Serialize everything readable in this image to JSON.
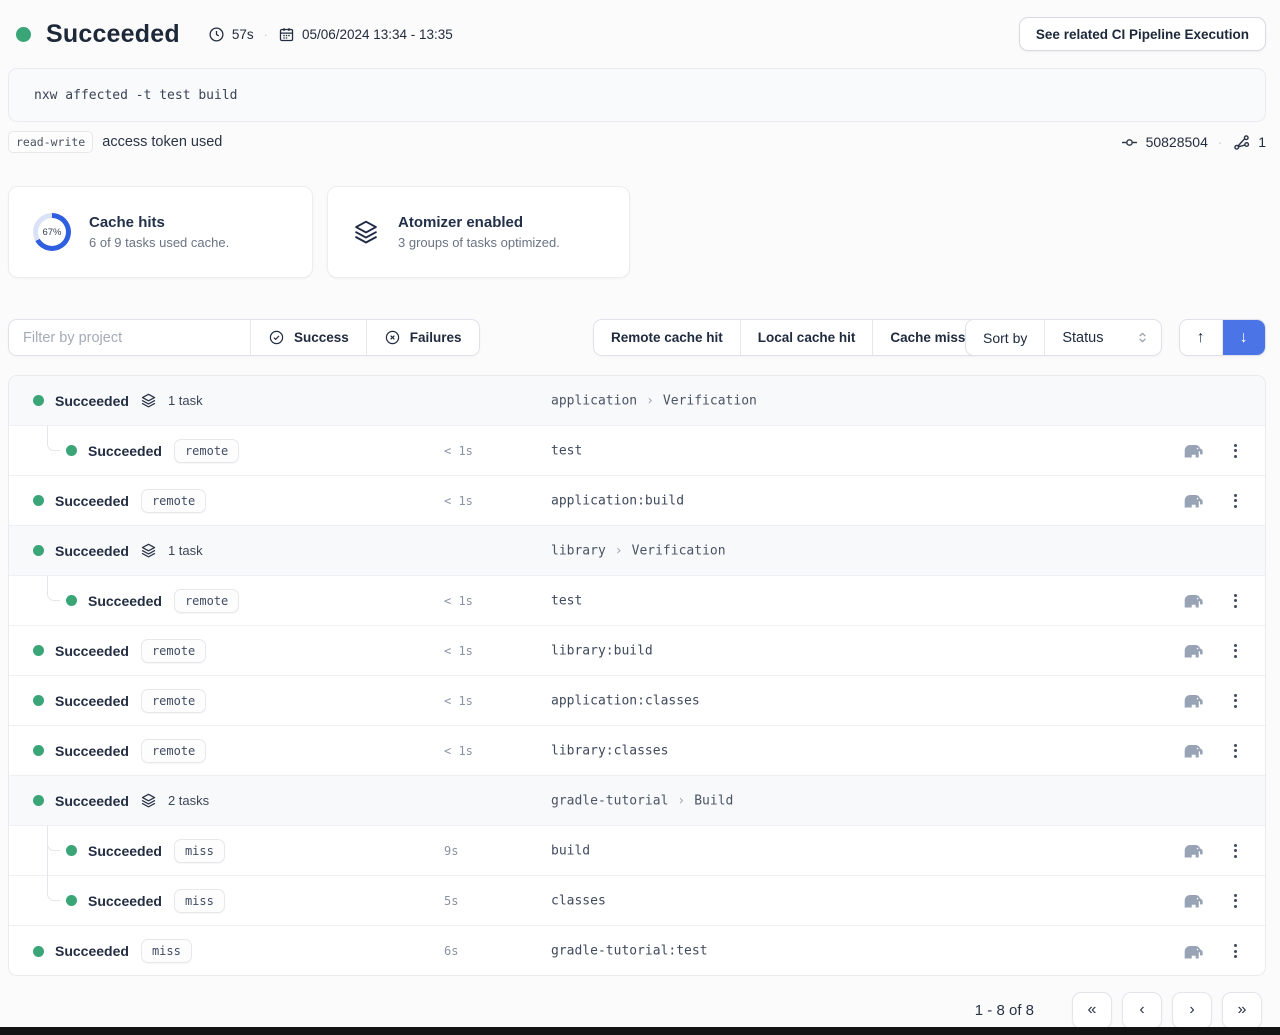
{
  "header": {
    "status_label": "Succeeded",
    "duration": "57s",
    "date_range": "05/06/2024 13:34 - 13:35",
    "cta_button": "See related CI Pipeline Execution"
  },
  "command": "nxw affected -t test build",
  "token": {
    "badge": "read-write",
    "text": "access token used",
    "commit_id": "50828504",
    "branch_count": "1"
  },
  "cards": {
    "cache_hits": {
      "percent": "67%",
      "title": "Cache hits",
      "subtitle": "6 of 9 tasks used cache."
    },
    "atomizer": {
      "title": "Atomizer enabled",
      "subtitle": "3 groups of tasks optimized."
    }
  },
  "filters": {
    "project_placeholder": "Filter by project",
    "success_label": "Success",
    "failures_label": "Failures",
    "cache_buttons": [
      "Remote cache hit",
      "Local cache hit",
      "Cache miss"
    ],
    "sort_label": "Sort by",
    "sort_value": "Status"
  },
  "tasks": {
    "rows": [
      {
        "type": "group",
        "status": "Succeeded",
        "count": "1 task",
        "project": "application",
        "target": "Verification"
      },
      {
        "type": "task",
        "indent": true,
        "status": "Succeeded",
        "badge": "remote",
        "duration": "< 1s",
        "name": "test"
      },
      {
        "type": "task",
        "indent": false,
        "status": "Succeeded",
        "badge": "remote",
        "duration": "< 1s",
        "name": "application:build"
      },
      {
        "type": "group",
        "status": "Succeeded",
        "count": "1 task",
        "project": "library",
        "target": "Verification"
      },
      {
        "type": "task",
        "indent": true,
        "status": "Succeeded",
        "badge": "remote",
        "duration": "< 1s",
        "name": "test"
      },
      {
        "type": "task",
        "indent": false,
        "status": "Succeeded",
        "badge": "remote",
        "duration": "< 1s",
        "name": "library:build"
      },
      {
        "type": "task",
        "indent": false,
        "status": "Succeeded",
        "badge": "remote",
        "duration": "< 1s",
        "name": "application:classes"
      },
      {
        "type": "task",
        "indent": false,
        "status": "Succeeded",
        "badge": "remote",
        "duration": "< 1s",
        "name": "library:classes"
      },
      {
        "type": "group",
        "status": "Succeeded",
        "count": "2 tasks",
        "project": "gradle-tutorial",
        "target": "Build"
      },
      {
        "type": "task",
        "indent": true,
        "status": "Succeeded",
        "badge": "miss",
        "duration": "9s",
        "name": "build"
      },
      {
        "type": "task",
        "indent": true,
        "status": "Succeeded",
        "badge": "miss",
        "duration": "5s",
        "name": "classes"
      },
      {
        "type": "task",
        "indent": false,
        "status": "Succeeded",
        "badge": "miss",
        "duration": "6s",
        "name": "gradle-tutorial:test"
      }
    ]
  },
  "pagination": {
    "range_label": "1 - 8 of 8"
  },
  "icons": {
    "sort_asc": "↑",
    "sort_desc": "↓",
    "separator_dot": "·",
    "chevron_right": "›",
    "page_first": "«",
    "page_prev": "‹",
    "page_next": "›",
    "page_last": "»"
  },
  "colors": {
    "success_green": "#3aa576",
    "accent_blue": "#4b74e6",
    "ring_blue": "#2e5fe0",
    "page_bg": "#fbfbfb",
    "group_row_bg": "#f8f9fb"
  }
}
